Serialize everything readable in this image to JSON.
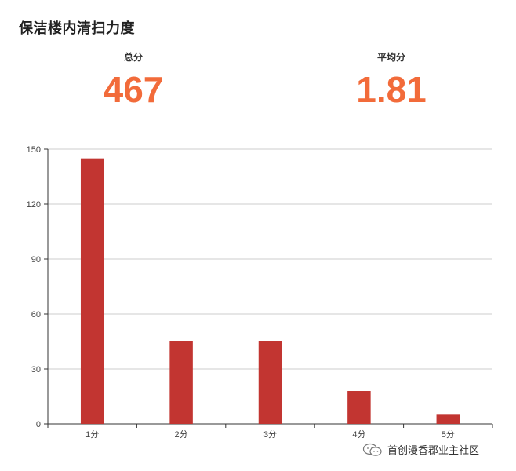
{
  "title": "保洁楼内清扫力度",
  "stats": {
    "total_label": "总分",
    "total_value": "467",
    "avg_label": "平均分",
    "avg_value": "1.81"
  },
  "colors": {
    "accent": "#f26b3a",
    "bar": "#c23531",
    "grid": "#cccccc",
    "axis": "#333333"
  },
  "chart_data": {
    "type": "bar",
    "categories": [
      "1分",
      "2分",
      "3分",
      "4分",
      "5分"
    ],
    "values": [
      145,
      45,
      45,
      18,
      5
    ],
    "ylim": [
      0,
      150
    ],
    "yticks": [
      0,
      30,
      60,
      90,
      120,
      150
    ],
    "grid": true,
    "xlabel": "",
    "ylabel": ""
  },
  "watermark": {
    "text": "首创漫香郡业主社区",
    "icon": "wechat-icon"
  }
}
